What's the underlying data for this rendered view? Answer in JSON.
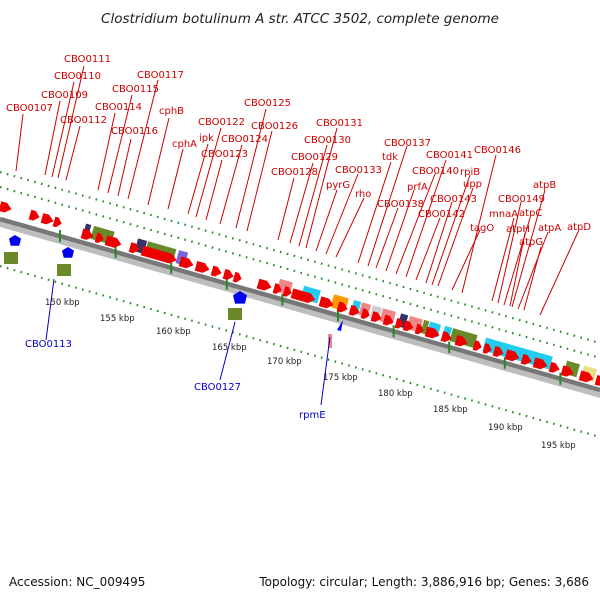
{
  "title": "Clostridium botulinum A str. ATCC 3502, complete genome",
  "footer": {
    "accession": "Accession: NC_009495",
    "summary": "Topology: circular; Length: 3,886,916 bp; Genes: 3,686"
  },
  "colors": {
    "forward_label": "#cc0000",
    "reverse_label": "#0000cc",
    "cds_forward": "#ee0000",
    "cds_reverse": "#0000ee",
    "rna": "#ee8888",
    "olive": "#6a8a2a",
    "cyan": "#22ccee",
    "orange": "#ff9900",
    "navy": "#333366",
    "purple": "#7766dd",
    "grid_dots": "#2e8b2e",
    "backbone": "#777777",
    "tick_marks": "#228b22"
  },
  "scale_ticks": [
    "150 kbp",
    "155 kbp",
    "160 kbp",
    "165 kbp",
    "170 kbp",
    "175 kbp",
    "180 kbp",
    "185 kbp",
    "190 kbp",
    "195 kbp"
  ],
  "forward_labels": [
    "CBO0107",
    "CBO0109",
    "CBO0110",
    "CBO0111",
    "CBO0112",
    "CBO0114",
    "CBO0115",
    "CBO0116",
    "CBO0117",
    "cphB",
    "cphA",
    "ipk",
    "CBO0122",
    "CBO0123",
    "CBO0124",
    "CBO0125",
    "CBO0126",
    "CBO0128",
    "CBO0129",
    "CBO0130",
    "CBO0131",
    "pyrG",
    "CBO0133",
    "rho",
    "tdk",
    "CBO0137",
    "CBO0138",
    "prfA",
    "CBO0140",
    "CBO0141",
    "CBO0142",
    "CBO0143",
    "rpiB",
    "upp",
    "tagO",
    "CBO0146",
    "mnaA",
    "CBO0149",
    "atpC",
    "atpB",
    "atpA",
    "atpH",
    "atpG",
    "atpD"
  ],
  "reverse_labels": [
    "CBO0113",
    "CBO0127",
    "rpmE"
  ]
}
